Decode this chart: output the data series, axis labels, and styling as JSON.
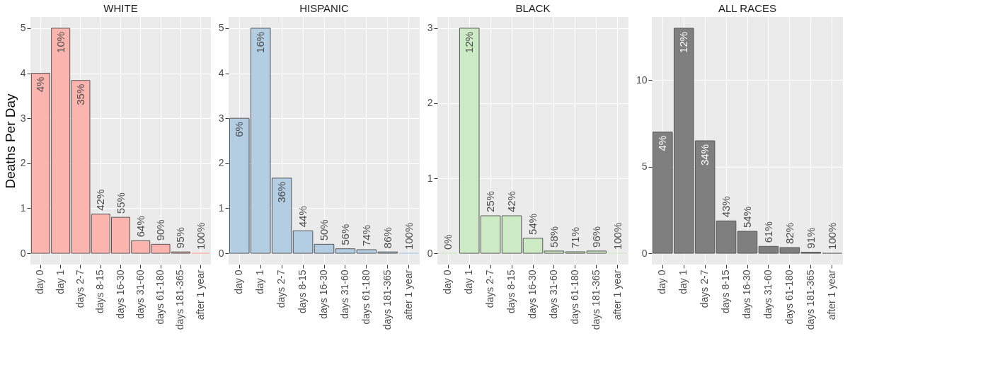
{
  "chart_data": [
    {
      "type": "bar",
      "title": "WHITE",
      "ylabel": "Deaths Per Day",
      "categories": [
        "day 0",
        "day 1",
        "days 2-7",
        "days 8-15",
        "days 16-30",
        "days 31-60",
        "days 61-180",
        "days 181-365",
        "after 1 year"
      ],
      "values": [
        4,
        5,
        3.84,
        0.87,
        0.8,
        0.28,
        0.2,
        0.03,
        0
      ],
      "color": "#fbb4ae",
      "annotations": [
        {
          "text": "4%",
          "x": "day 0",
          "y": 4
        },
        {
          "text": "10%",
          "x": "day 1",
          "y": 5
        },
        {
          "text": "35%",
          "x": "days 2-7",
          "y": 3.84
        },
        {
          "text": "42%",
          "x": "days 8-15",
          "y": 0.87
        },
        {
          "text": "55%",
          "x": "days 16-30",
          "y": 0.8
        },
        {
          "text": "64%",
          "x": "days 31-60",
          "y": 0.28
        },
        {
          "text": "90%",
          "x": "days 61-180",
          "y": 0.2
        },
        {
          "text": "95%",
          "x": "days 181-365",
          "y": 0.03
        },
        {
          "text": "100%",
          "x": "after 1 year",
          "y": 0
        }
      ],
      "ylim": [
        -0.25,
        5.25
      ],
      "yticks": [
        0,
        1,
        2,
        3,
        4,
        5
      ],
      "grid": true
    },
    {
      "type": "bar",
      "title": "HISPANIC",
      "categories": [
        "day 0",
        "day 1",
        "days 2-7",
        "days 8-15",
        "days 16-30",
        "days 31-60",
        "days 61-180",
        "days 181-365",
        "after 1 year"
      ],
      "values": [
        3,
        5,
        1.67,
        0.5,
        0.2,
        0.1,
        0.08,
        0.03,
        0
      ],
      "color": "#b3cde3",
      "annotations": [
        {
          "text": "6%",
          "x": "day 0",
          "y": 3
        },
        {
          "text": "16%",
          "x": "day 1",
          "y": 5
        },
        {
          "text": "36%",
          "x": "days 2-7",
          "y": 1.67
        },
        {
          "text": "44%",
          "x": "days 8-15",
          "y": 0.5
        },
        {
          "text": "50%",
          "x": "days 16-30",
          "y": 0.2
        },
        {
          "text": "56%",
          "x": "days 31-60",
          "y": 0.1
        },
        {
          "text": "74%",
          "x": "days 61-180",
          "y": 0.08
        },
        {
          "text": "86%",
          "x": "days 181-365",
          "y": 0.03
        },
        {
          "text": "100%",
          "x": "after 1 year",
          "y": 0
        }
      ],
      "ylim": [
        -0.25,
        5.25
      ],
      "yticks": [
        0,
        1,
        2,
        3,
        4,
        5
      ],
      "grid": true
    },
    {
      "type": "bar",
      "title": "BLACK",
      "categories": [
        "day 0",
        "day 1",
        "days 2-7",
        "days 8-15",
        "days 16-30",
        "days 31-60",
        "days 61-180",
        "days 181-365",
        "after 1 year"
      ],
      "values": [
        0,
        3,
        0.5,
        0.5,
        0.2,
        0.03,
        0.02,
        0.03,
        0
      ],
      "color": "#ccebc5",
      "annotations": [
        {
          "text": "0%",
          "x": "day 0",
          "y": 0
        },
        {
          "text": "12%",
          "x": "day 1",
          "y": 3
        },
        {
          "text": "25%",
          "x": "days 2-7",
          "y": 0.5
        },
        {
          "text": "42%",
          "x": "days 8-15",
          "y": 0.5
        },
        {
          "text": "54%",
          "x": "days 16-30",
          "y": 0.2
        },
        {
          "text": "58%",
          "x": "days 31-60",
          "y": 0.03
        },
        {
          "text": "71%",
          "x": "days 61-180",
          "y": 0.02
        },
        {
          "text": "96%",
          "x": "days 181-365",
          "y": 0.03
        },
        {
          "text": "100%",
          "x": "after 1 year",
          "y": 0
        }
      ],
      "ylim": [
        -0.15,
        3.15
      ],
      "yticks": [
        0,
        1,
        2,
        3
      ],
      "grid": true
    },
    {
      "type": "bar",
      "title": "ALL RACES",
      "categories": [
        "day 0",
        "day 1",
        "days 2-7",
        "days 8-15",
        "days 16-30",
        "days 31-60",
        "days 61-180",
        "days 181-365",
        "after 1 year"
      ],
      "values": [
        7,
        13,
        6.5,
        1.87,
        1.27,
        0.4,
        0.33,
        0.06,
        0
      ],
      "color": "#7f7f7f",
      "annotations": [
        {
          "text": "4%",
          "x": "day 0",
          "y": 7
        },
        {
          "text": "12%",
          "x": "day 1",
          "y": 13
        },
        {
          "text": "34%",
          "x": "days 2-7",
          "y": 6.5
        },
        {
          "text": "43%",
          "x": "days 8-15",
          "y": 1.87
        },
        {
          "text": "54%",
          "x": "days 16-30",
          "y": 1.27
        },
        {
          "text": "61%",
          "x": "days 31-60",
          "y": 0.4
        },
        {
          "text": "82%",
          "x": "days 61-180",
          "y": 0.33
        },
        {
          "text": "91%",
          "x": "days 181-365",
          "y": 0.06
        },
        {
          "text": "100%",
          "x": "after 1 year",
          "y": 0
        }
      ],
      "ylim": [
        -0.65,
        13.65
      ],
      "yticks": [
        0,
        5,
        10
      ],
      "grid": true
    }
  ]
}
